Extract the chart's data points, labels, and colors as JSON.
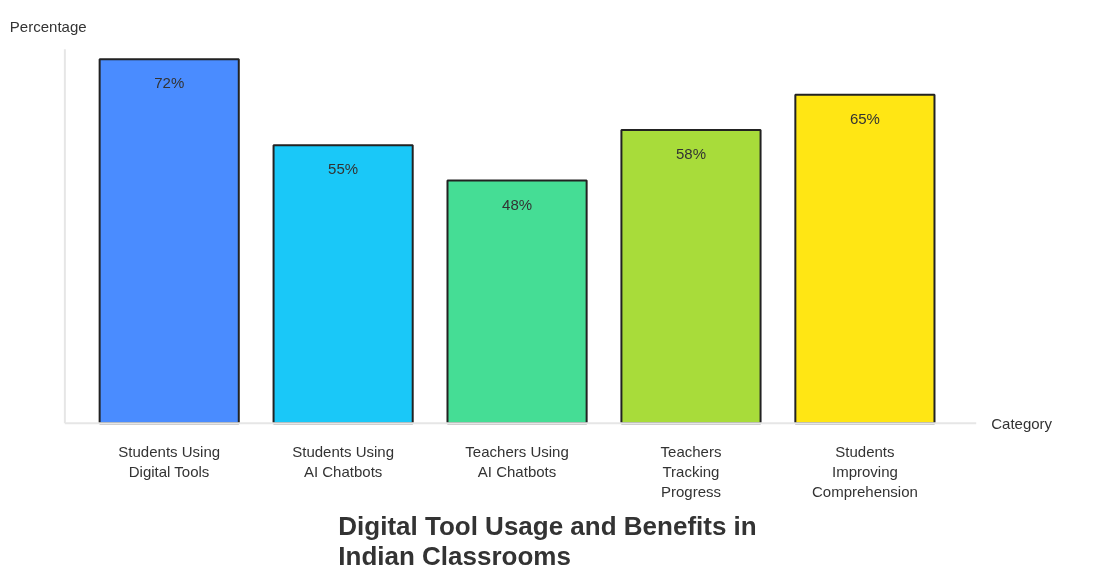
{
  "chart_data": {
    "type": "bar",
    "title": "Digital Tool Usage and Benefits in Indian Classrooms",
    "xlabel": "Category",
    "ylabel": "Percentage",
    "categories": [
      "Students Using Digital Tools",
      "Students Using AI Chatbots",
      "Teachers Using AI Chatbots",
      "Teachers Tracking Progress",
      "Students Improving Comprehension"
    ],
    "values": [
      72,
      55,
      48,
      58,
      65
    ],
    "colors": [
      "#4a8cff",
      "#1ac8f8",
      "#45dd95",
      "#a8dc3a",
      "#ffe614"
    ],
    "value_labels": [
      "72%",
      "55%",
      "48%",
      "58%",
      "65%"
    ],
    "ylim": [
      0,
      74
    ],
    "grid": false
  }
}
